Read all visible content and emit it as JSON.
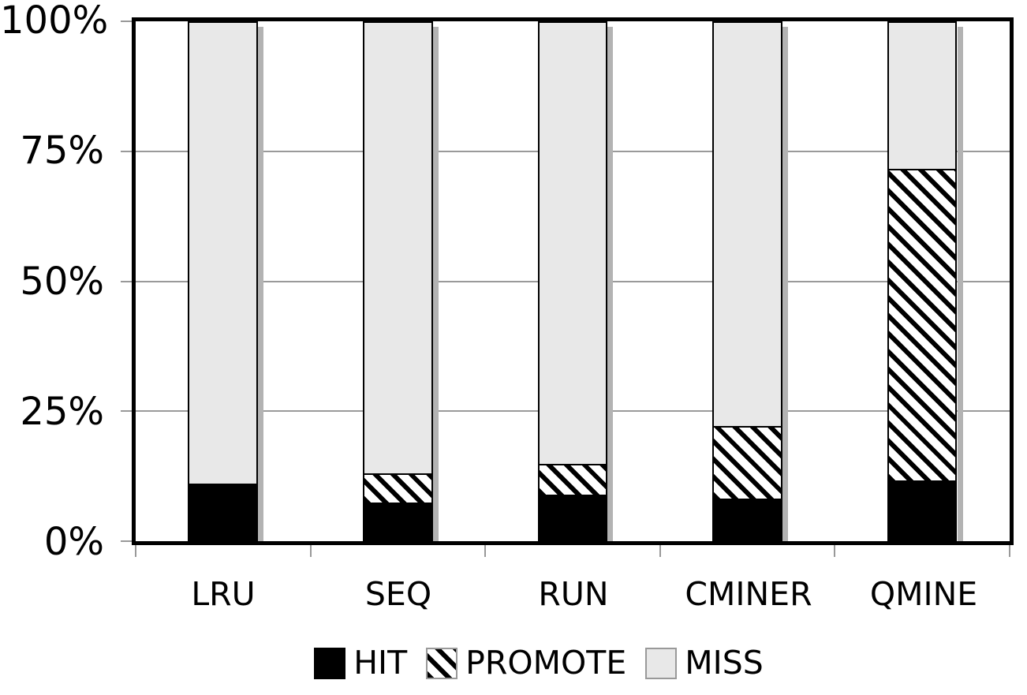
{
  "colors": {
    "background": "#ffffff",
    "bar_border": "#000000",
    "hit_fill": "#000000",
    "promote_hatch": "#000000",
    "miss_fill": "#e8e8e8",
    "gridline": "#9a9a9a",
    "tick": "#999999",
    "bar_shadow": "#b3b3b3",
    "text": "#000000"
  },
  "chart_data": {
    "type": "bar",
    "stacked": true,
    "title": "",
    "xlabel": "",
    "ylabel": "",
    "categories": [
      "LRU",
      "SEQ",
      "RUN",
      "CMINER",
      "QMINE"
    ],
    "series": [
      {
        "name": "HIT",
        "pattern": "solid-black",
        "values": [
          10.8,
          7.2,
          8.7,
          8.0,
          11.4
        ]
      },
      {
        "name": "PROMOTE",
        "pattern": "diagonal-hatch",
        "values": [
          0.0,
          5.6,
          5.9,
          14.0,
          60.3
        ]
      },
      {
        "name": "MISS",
        "pattern": "light-gray",
        "values": [
          89.2,
          87.2,
          85.4,
          78.0,
          28.3
        ]
      }
    ],
    "ylim": [
      0,
      100
    ],
    "y_ticks": [
      {
        "label": "0%",
        "value": 0
      },
      {
        "label": "25%",
        "value": 25
      },
      {
        "label": "50%",
        "value": 50
      },
      {
        "label": "75%",
        "value": 75
      },
      {
        "label": "100%",
        "value": 100
      }
    ],
    "grid": "horizontal-at-25-50-75",
    "legend_position": "bottom",
    "legend": [
      "HIT",
      "PROMOTE",
      "MISS"
    ]
  }
}
